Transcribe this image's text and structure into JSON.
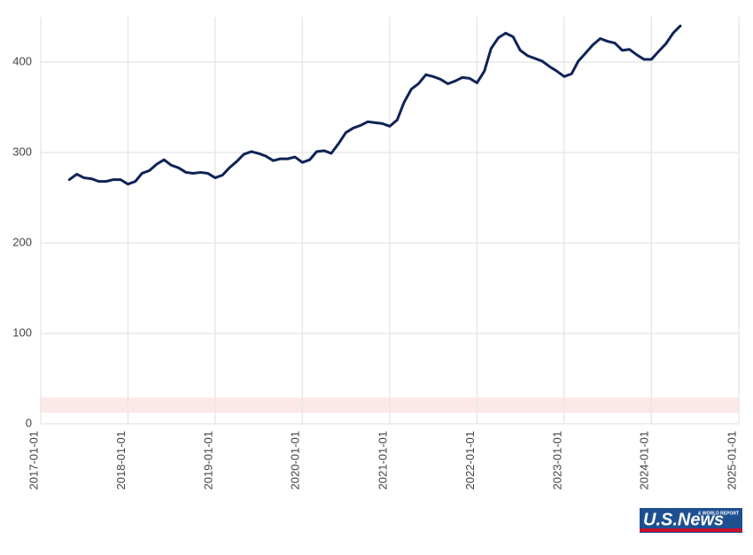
{
  "chart_data": {
    "type": "line",
    "x": [
      "2017-05-01",
      "2017-06-01",
      "2017-07-01",
      "2017-08-01",
      "2017-09-01",
      "2017-10-01",
      "2017-11-01",
      "2017-12-01",
      "2018-01-01",
      "2018-02-01",
      "2018-03-01",
      "2018-04-01",
      "2018-05-01",
      "2018-06-01",
      "2018-07-01",
      "2018-08-01",
      "2018-09-01",
      "2018-10-01",
      "2018-11-01",
      "2018-12-01",
      "2019-01-01",
      "2019-02-01",
      "2019-03-01",
      "2019-04-01",
      "2019-05-01",
      "2019-06-01",
      "2019-07-01",
      "2019-08-01",
      "2019-09-01",
      "2019-10-01",
      "2019-11-01",
      "2019-12-01",
      "2020-01-01",
      "2020-02-01",
      "2020-03-01",
      "2020-04-01",
      "2020-05-01",
      "2020-06-01",
      "2020-07-01",
      "2020-08-01",
      "2020-09-01",
      "2020-10-01",
      "2020-11-01",
      "2020-12-01",
      "2021-01-01",
      "2021-02-01",
      "2021-03-01",
      "2021-04-01",
      "2021-05-01",
      "2021-06-01",
      "2021-07-01",
      "2021-08-01",
      "2021-09-01",
      "2021-10-01",
      "2021-11-01",
      "2021-12-01",
      "2022-01-01",
      "2022-02-01",
      "2022-03-01",
      "2022-04-01",
      "2022-05-01",
      "2022-06-01",
      "2022-07-01",
      "2022-08-01",
      "2022-09-01",
      "2022-10-01",
      "2022-11-01",
      "2022-12-01",
      "2023-01-01",
      "2023-02-01",
      "2023-03-01",
      "2023-04-01",
      "2023-05-01",
      "2023-06-01",
      "2023-07-01",
      "2023-08-01",
      "2023-09-01",
      "2023-10-01",
      "2023-11-01",
      "2023-12-01",
      "2024-01-01",
      "2024-02-01",
      "2024-03-01",
      "2024-04-01",
      "2024-05-01"
    ],
    "series": [
      {
        "color": "#0f2356",
        "values": [
          270,
          276,
          272,
          271,
          268,
          268,
          270,
          270,
          265,
          268,
          277,
          280,
          287,
          292,
          286,
          283,
          278,
          277,
          278,
          277,
          272,
          275,
          283,
          290,
          298,
          301,
          299,
          296,
          291,
          293,
          293,
          295,
          289,
          292,
          301,
          302,
          299,
          310,
          322,
          327,
          330,
          334,
          333,
          332,
          329,
          336,
          355,
          370,
          376,
          386,
          384,
          381,
          376,
          379,
          383,
          382,
          377,
          390,
          415,
          427,
          432,
          428,
          413,
          407,
          404,
          401,
          395,
          390,
          384,
          387,
          401,
          410,
          419,
          426,
          423,
          421,
          413,
          414,
          408,
          403,
          403,
          412,
          420,
          432,
          440
        ]
      }
    ],
    "xlim": [
      "2017-01-01",
      "2025-01-01"
    ],
    "xticks": [
      "2017-01-01",
      "2018-01-01",
      "2019-01-01",
      "2020-01-01",
      "2021-01-01",
      "2022-01-01",
      "2023-01-01",
      "2024-01-01",
      "2025-01-01"
    ],
    "ylim": [
      0,
      450
    ],
    "yticks": [
      0,
      100,
      200,
      300,
      400
    ],
    "shaded_band": {
      "range": [
        12,
        29
      ],
      "color": "#fde8e8"
    },
    "grid": true
  },
  "logo": {
    "text": "U.S.News",
    "subtext": "& WORLD REPORT"
  }
}
